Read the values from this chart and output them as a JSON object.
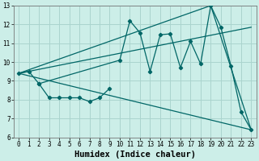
{
  "xlabel": "Humidex (Indice chaleur)",
  "xlim": [
    -0.5,
    23.5
  ],
  "ylim": [
    6,
    13
  ],
  "xticks": [
    0,
    1,
    2,
    3,
    4,
    5,
    6,
    7,
    8,
    9,
    10,
    11,
    12,
    13,
    14,
    15,
    16,
    17,
    18,
    19,
    20,
    21,
    22,
    23
  ],
  "yticks": [
    6,
    7,
    8,
    9,
    10,
    11,
    12,
    13
  ],
  "bg_color": "#cceee8",
  "grid_color": "#aad4ce",
  "line_color": "#006666",
  "line1_x": [
    0,
    1,
    2,
    10,
    11,
    12,
    13,
    14,
    15,
    16,
    17,
    18,
    19,
    20,
    21,
    22,
    23
  ],
  "line1_y": [
    9.4,
    9.5,
    8.85,
    10.1,
    12.2,
    11.55,
    9.5,
    11.45,
    11.5,
    9.7,
    11.1,
    9.9,
    13.0,
    11.85,
    9.8,
    7.35,
    6.4
  ],
  "line2_x": [
    0,
    23
  ],
  "line2_y": [
    9.4,
    6.4
  ],
  "line3_x": [
    2,
    3,
    4,
    5,
    6,
    7,
    8,
    9
  ],
  "line3_y": [
    8.85,
    8.1,
    8.1,
    8.1,
    8.1,
    7.9,
    8.1,
    8.6
  ],
  "line4_x": [
    0,
    19,
    23
  ],
  "line4_y": [
    9.4,
    13.0,
    6.4
  ],
  "line5_x": [
    0,
    23
  ],
  "line5_y": [
    9.4,
    11.85
  ],
  "font_family": "monospace",
  "tick_fontsize": 5.5,
  "label_fontsize": 7.5
}
